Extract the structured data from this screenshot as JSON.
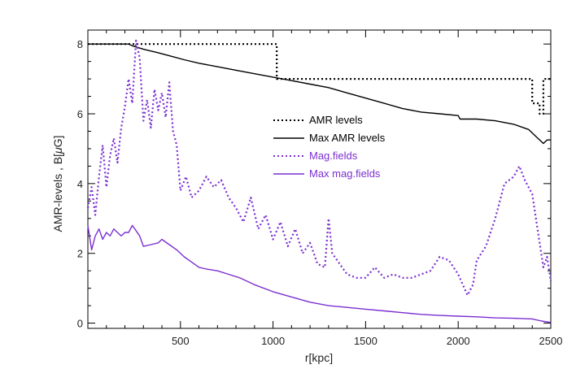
{
  "chart_data": {
    "type": "line",
    "xlabel": "r[kpc]",
    "ylabel_parts": [
      "AMR-levels , B[",
      "μ",
      "G]"
    ],
    "xlim": [
      0,
      2500
    ],
    "ylim": [
      -0.15,
      8.4
    ],
    "xticks": [
      500,
      1000,
      1500,
      2000,
      2500
    ],
    "xtick_labels": [
      "500",
      "1000",
      "1500",
      "2000",
      "2500"
    ],
    "yticks": [
      0,
      2,
      4,
      6,
      8
    ],
    "ytick_labels": [
      "0",
      "2",
      "4",
      "6",
      "8"
    ],
    "grid": false,
    "legend_position": "center-right",
    "colors": {
      "black": "#000000",
      "purple": "#7b2fd1"
    },
    "series": [
      {
        "name": "AMR levels",
        "style": "dotted",
        "color": "#000000",
        "x": [
          0,
          1020,
          1020,
          2400,
          2400,
          2440,
          2440,
          2460,
          2460,
          2500
        ],
        "y": [
          8,
          8,
          7,
          7,
          6.3,
          6.3,
          6,
          6,
          7,
          7
        ]
      },
      {
        "name": "Max AMR levels",
        "style": "solid",
        "color": "#000000",
        "x": [
          0,
          220,
          240,
          300,
          380,
          450,
          520,
          600,
          700,
          800,
          900,
          1000,
          1100,
          1200,
          1300,
          1400,
          1500,
          1600,
          1700,
          1800,
          1900,
          2000,
          2010,
          2100,
          2200,
          2300,
          2380,
          2430,
          2460,
          2480,
          2500
        ],
        "y": [
          8,
          8,
          7.95,
          7.85,
          7.75,
          7.65,
          7.55,
          7.45,
          7.35,
          7.25,
          7.15,
          7.05,
          6.95,
          6.85,
          6.75,
          6.6,
          6.45,
          6.3,
          6.15,
          6.05,
          6.0,
          5.95,
          5.85,
          5.85,
          5.8,
          5.7,
          5.55,
          5.3,
          5.15,
          5.25,
          5.25
        ]
      },
      {
        "name": "Mag.fields",
        "style": "dotted",
        "color": "#7b2fd1",
        "x": [
          0,
          20,
          40,
          60,
          80,
          100,
          120,
          140,
          160,
          180,
          200,
          220,
          240,
          260,
          280,
          300,
          320,
          340,
          360,
          380,
          400,
          420,
          440,
          460,
          480,
          500,
          530,
          560,
          600,
          640,
          680,
          720,
          760,
          800,
          840,
          880,
          920,
          960,
          1000,
          1040,
          1080,
          1120,
          1160,
          1200,
          1240,
          1280,
          1300,
          1320,
          1360,
          1400,
          1450,
          1500,
          1550,
          1600,
          1650,
          1700,
          1750,
          1800,
          1850,
          1900,
          1950,
          2000,
          2050,
          2080,
          2100,
          2150,
          2200,
          2250,
          2300,
          2330,
          2360,
          2400,
          2440,
          2460,
          2480,
          2500
        ],
        "y": [
          3.3,
          3.9,
          3.1,
          4.2,
          5.1,
          3.9,
          4.8,
          5.3,
          4.6,
          5.6,
          6.2,
          7.0,
          6.3,
          8.1,
          7.6,
          5.8,
          6.4,
          5.6,
          6.7,
          6.1,
          6.6,
          5.9,
          6.9,
          5.5,
          5.1,
          3.8,
          4.2,
          3.6,
          3.8,
          4.2,
          3.9,
          4.1,
          3.6,
          3.3,
          2.9,
          3.6,
          2.7,
          3.1,
          2.4,
          2.9,
          2.2,
          2.7,
          2.0,
          2.3,
          1.7,
          1.6,
          3.0,
          2.0,
          1.7,
          1.4,
          1.3,
          1.3,
          1.6,
          1.3,
          1.4,
          1.3,
          1.3,
          1.4,
          1.5,
          1.9,
          1.8,
          1.4,
          0.8,
          1.1,
          1.8,
          2.2,
          3.0,
          4.0,
          4.2,
          4.5,
          4.1,
          3.7,
          2.3,
          1.6,
          1.9,
          1.2
        ]
      },
      {
        "name": "Max mag.fields",
        "style": "solid",
        "color": "#7b2fd1",
        "x": [
          0,
          20,
          40,
          60,
          80,
          100,
          120,
          140,
          160,
          180,
          200,
          220,
          240,
          260,
          280,
          300,
          340,
          380,
          400,
          440,
          480,
          520,
          560,
          600,
          640,
          700,
          760,
          820,
          900,
          1000,
          1100,
          1200,
          1300,
          1400,
          1500,
          1600,
          1700,
          1800,
          1900,
          2000,
          2100,
          2200,
          2300,
          2400,
          2450,
          2500
        ],
        "y": [
          2.8,
          2.1,
          2.5,
          2.7,
          2.4,
          2.6,
          2.5,
          2.7,
          2.6,
          2.5,
          2.6,
          2.6,
          2.8,
          2.65,
          2.5,
          2.2,
          2.25,
          2.3,
          2.4,
          2.25,
          2.1,
          1.9,
          1.75,
          1.6,
          1.55,
          1.5,
          1.4,
          1.3,
          1.1,
          0.9,
          0.75,
          0.6,
          0.5,
          0.45,
          0.4,
          0.35,
          0.3,
          0.25,
          0.22,
          0.2,
          0.18,
          0.15,
          0.14,
          0.12,
          0.06,
          0.02
        ]
      }
    ]
  }
}
